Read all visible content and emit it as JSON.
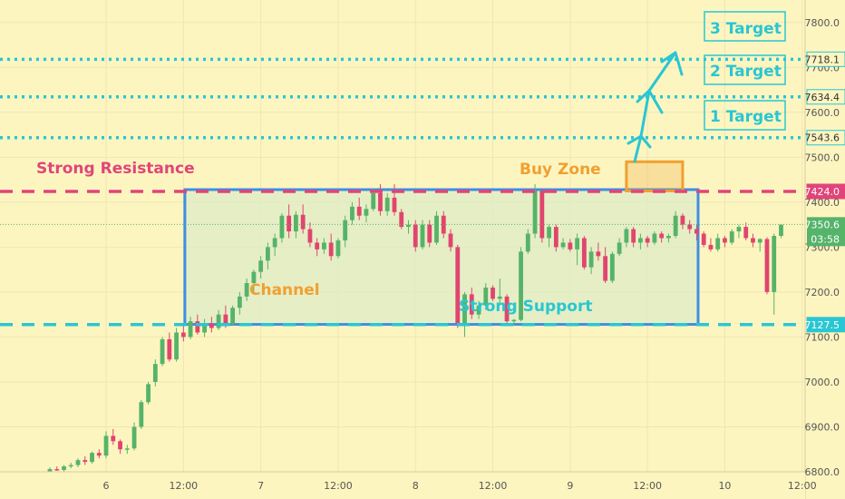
{
  "chart_data": {
    "type": "candlestick",
    "colors": {
      "background": "#fdf5c0",
      "grid": "#efe6b4",
      "up": "#56b36a",
      "down": "#e0456f",
      "resistance": "#e0457a",
      "support": "#29c6d3",
      "target": "#29c6d3",
      "channel_border": "#3f8fe0",
      "channel_fill": "#dcebc7",
      "buy_zone": "#f0a030",
      "last_price": "#56b36a"
    },
    "y_range": [
      6800,
      7850
    ],
    "x_range": [
      0,
      106
    ],
    "y_ticks": [
      "7800.0",
      "7700.0",
      "7600.0",
      "7500.0",
      "7400.0",
      "7300.0",
      "7200.0",
      "7100.0",
      "7000.0",
      "6900.0",
      "6800.0"
    ],
    "x_ticks": [
      {
        "label": "6",
        "x": 8
      },
      {
        "label": "12:00",
        "x": 19
      },
      {
        "label": "7",
        "x": 30
      },
      {
        "label": "12:00",
        "x": 41
      },
      {
        "label": "8",
        "x": 52
      },
      {
        "label": "12:00",
        "x": 63
      },
      {
        "label": "9",
        "x": 74
      },
      {
        "label": "12:00",
        "x": 85
      },
      {
        "label": "10",
        "x": 96
      },
      {
        "label": "12:00",
        "x": 107
      }
    ],
    "levels": [
      {
        "name": "3 Target",
        "price": 7718.1,
        "label": "7718.1",
        "kind": "target"
      },
      {
        "name": "2 Target",
        "price": 7634.4,
        "label": "7634.4",
        "kind": "target"
      },
      {
        "name": "1 Target",
        "price": 7543.6,
        "label": "7543.6",
        "kind": "target"
      },
      {
        "name": "Strong Resistance",
        "price": 7424.0,
        "label": "7424.0",
        "kind": "resistance"
      },
      {
        "name": "Strong Support",
        "price": 7127.5,
        "label": "7127.5",
        "kind": "support"
      }
    ],
    "last_price": {
      "price": 7350.6,
      "label": "7350.6",
      "countdown": "03:58"
    },
    "annotations": {
      "strong_resistance": "Strong Resistance",
      "buy_zone": "Buy Zone",
      "channel": "Channel",
      "strong_support": "Strong Support",
      "target_1": "1 Target",
      "target_2": "2 Target",
      "target_3": "3 Target"
    },
    "channel": {
      "x_start": 19.2,
      "x_end": 92.2,
      "price_top": 7428,
      "price_bottom": 7128
    },
    "buy_zone": {
      "x_start": 82,
      "x_end": 90,
      "price_top": 7490,
      "price_bottom": 7425
    },
    "candles": [
      [
        6800,
        6810,
        6798,
        6806
      ],
      [
        6806,
        6812,
        6802,
        6804
      ],
      [
        6804,
        6815,
        6800,
        6812
      ],
      [
        6812,
        6820,
        6808,
        6815
      ],
      [
        6815,
        6830,
        6810,
        6826
      ],
      [
        6826,
        6835,
        6815,
        6822
      ],
      [
        6822,
        6845,
        6818,
        6842
      ],
      [
        6842,
        6850,
        6830,
        6836
      ],
      [
        6836,
        6890,
        6830,
        6880
      ],
      [
        6880,
        6895,
        6860,
        6868
      ],
      [
        6868,
        6872,
        6840,
        6850
      ],
      [
        6850,
        6860,
        6840,
        6852
      ],
      [
        6852,
        6910,
        6848,
        6900
      ],
      [
        6900,
        6960,
        6895,
        6955
      ],
      [
        6955,
        7000,
        6950,
        6995
      ],
      [
        7000,
        7050,
        6990,
        7040
      ],
      [
        7040,
        7100,
        7035,
        7095
      ],
      [
        7095,
        7110,
        7045,
        7050
      ],
      [
        7050,
        7120,
        7045,
        7110
      ],
      [
        7110,
        7130,
        7090,
        7100
      ],
      [
        7100,
        7145,
        7095,
        7135
      ],
      [
        7135,
        7150,
        7105,
        7110
      ],
      [
        7110,
        7140,
        7100,
        7130
      ],
      [
        7130,
        7145,
        7110,
        7120
      ],
      [
        7120,
        7160,
        7115,
        7150
      ],
      [
        7150,
        7170,
        7120,
        7128
      ],
      [
        7128,
        7170,
        7125,
        7165
      ],
      [
        7165,
        7200,
        7150,
        7190
      ],
      [
        7190,
        7230,
        7180,
        7220
      ],
      [
        7220,
        7250,
        7200,
        7245
      ],
      [
        7245,
        7280,
        7230,
        7270
      ],
      [
        7270,
        7310,
        7250,
        7300
      ],
      [
        7300,
        7330,
        7280,
        7320
      ],
      [
        7320,
        7375,
        7310,
        7370
      ],
      [
        7370,
        7395,
        7320,
        7335
      ],
      [
        7335,
        7380,
        7320,
        7372
      ],
      [
        7372,
        7395,
        7330,
        7340
      ],
      [
        7340,
        7355,
        7300,
        7310
      ],
      [
        7310,
        7320,
        7280,
        7295
      ],
      [
        7295,
        7320,
        7285,
        7310
      ],
      [
        7310,
        7330,
        7270,
        7280
      ],
      [
        7280,
        7320,
        7275,
        7315
      ],
      [
        7315,
        7370,
        7300,
        7360
      ],
      [
        7360,
        7400,
        7350,
        7390
      ],
      [
        7390,
        7410,
        7360,
        7370
      ],
      [
        7370,
        7395,
        7355,
        7385
      ],
      [
        7385,
        7430,
        7380,
        7420
      ],
      [
        7420,
        7440,
        7370,
        7380
      ],
      [
        7380,
        7420,
        7370,
        7410
      ],
      [
        7410,
        7440,
        7370,
        7378
      ],
      [
        7378,
        7385,
        7340,
        7345
      ],
      [
        7345,
        7360,
        7330,
        7350
      ],
      [
        7350,
        7360,
        7290,
        7300
      ],
      [
        7300,
        7360,
        7295,
        7350
      ],
      [
        7350,
        7360,
        7300,
        7310
      ],
      [
        7310,
        7380,
        7305,
        7370
      ],
      [
        7370,
        7380,
        7320,
        7330
      ],
      [
        7330,
        7340,
        7290,
        7300
      ],
      [
        7300,
        7305,
        7120,
        7130
      ],
      [
        7130,
        7200,
        7100,
        7195
      ],
      [
        7195,
        7210,
        7140,
        7150
      ],
      [
        7150,
        7180,
        7140,
        7170
      ],
      [
        7170,
        7220,
        7160,
        7210
      ],
      [
        7210,
        7215,
        7180,
        7185
      ],
      [
        7185,
        7230,
        7175,
        7190
      ],
      [
        7190,
        7195,
        7130,
        7135
      ],
      [
        7135,
        7140,
        7125,
        7138
      ],
      [
        7138,
        7300,
        7135,
        7290
      ],
      [
        7290,
        7340,
        7285,
        7330
      ],
      [
        7330,
        7440,
        7320,
        7425
      ],
      [
        7425,
        7430,
        7310,
        7320
      ],
      [
        7320,
        7350,
        7300,
        7345
      ],
      [
        7345,
        7350,
        7290,
        7300
      ],
      [
        7300,
        7320,
        7295,
        7310
      ],
      [
        7310,
        7318,
        7290,
        7295
      ],
      [
        7295,
        7330,
        7260,
        7320
      ],
      [
        7320,
        7325,
        7250,
        7255
      ],
      [
        7255,
        7300,
        7240,
        7290
      ],
      [
        7290,
        7310,
        7270,
        7280
      ],
      [
        7280,
        7300,
        7220,
        7225
      ],
      [
        7225,
        7290,
        7220,
        7285
      ],
      [
        7285,
        7320,
        7280,
        7310
      ],
      [
        7310,
        7345,
        7300,
        7340
      ],
      [
        7340,
        7345,
        7300,
        7310
      ],
      [
        7310,
        7330,
        7295,
        7320
      ],
      [
        7320,
        7325,
        7300,
        7310
      ],
      [
        7310,
        7335,
        7305,
        7330
      ],
      [
        7330,
        7335,
        7310,
        7320
      ],
      [
        7320,
        7330,
        7310,
        7325
      ],
      [
        7325,
        7380,
        7320,
        7370
      ],
      [
        7370,
        7375,
        7340,
        7350
      ],
      [
        7350,
        7360,
        7330,
        7340
      ],
      [
        7340,
        7350,
        7315,
        7330
      ],
      [
        7330,
        7335,
        7300,
        7305
      ],
      [
        7305,
        7320,
        7290,
        7295
      ],
      [
        7295,
        7330,
        7290,
        7320
      ],
      [
        7320,
        7325,
        7300,
        7310
      ],
      [
        7310,
        7340,
        7305,
        7335
      ],
      [
        7335,
        7350,
        7320,
        7345
      ],
      [
        7345,
        7355,
        7315,
        7320
      ],
      [
        7320,
        7330,
        7300,
        7310
      ],
      [
        7310,
        7320,
        7290,
        7318
      ],
      [
        7318,
        7322,
        7195,
        7200
      ],
      [
        7200,
        7330,
        7150,
        7325
      ],
      [
        7325,
        7350,
        7320,
        7350
      ]
    ]
  }
}
